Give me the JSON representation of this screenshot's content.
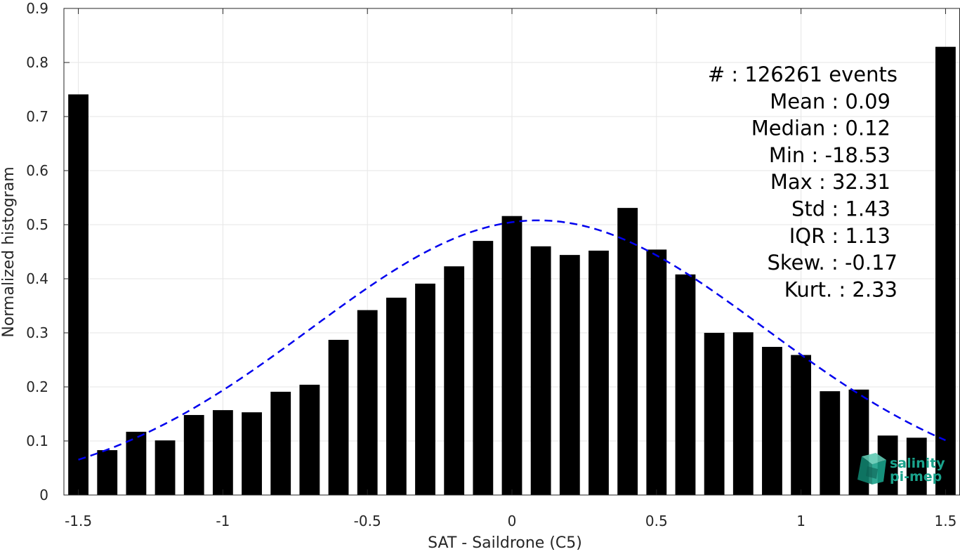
{
  "chart_data": {
    "type": "bar",
    "xlabel": "SAT - Saildrone (C5)",
    "ylabel": "Normalized histogram",
    "xlim": [
      -1.55,
      1.55
    ],
    "ylim": [
      0,
      0.9
    ],
    "xticks": [
      -1.5,
      -1,
      -0.5,
      0,
      0.5,
      1,
      1.5
    ],
    "xtick_labels": [
      "-1.5",
      "-1",
      "-0.5",
      "0",
      "0.5",
      "1",
      "1.5"
    ],
    "yticks": [
      0,
      0.1,
      0.2,
      0.3,
      0.4,
      0.5,
      0.6,
      0.7,
      0.8,
      0.9
    ],
    "ytick_labels": [
      "0",
      "0.1",
      "0.2",
      "0.3",
      "0.4",
      "0.5",
      "0.6",
      "0.7",
      "0.8",
      "0.9"
    ],
    "grid": true,
    "bar_color": "#000000",
    "bar_width": 0.07,
    "x": [
      -1.5,
      -1.4,
      -1.3,
      -1.2,
      -1.1,
      -1.0,
      -0.9,
      -0.8,
      -0.7,
      -0.6,
      -0.5,
      -0.4,
      -0.3,
      -0.2,
      -0.1,
      0.0,
      0.1,
      0.2,
      0.3,
      0.4,
      0.5,
      0.6,
      0.7,
      0.8,
      0.9,
      1.0,
      1.1,
      1.2,
      1.3,
      1.4,
      1.5
    ],
    "values": [
      0.741,
      0.083,
      0.117,
      0.101,
      0.148,
      0.157,
      0.153,
      0.191,
      0.204,
      0.287,
      0.342,
      0.365,
      0.391,
      0.423,
      0.47,
      0.516,
      0.46,
      0.444,
      0.452,
      0.531,
      0.454,
      0.408,
      0.3,
      0.301,
      0.274,
      0.259,
      0.192,
      0.195,
      0.11,
      0.106,
      0.829
    ],
    "fit_curve": {
      "style": "dashed",
      "color": "#0000ee",
      "mean": 0.09,
      "std": 0.785,
      "peak": 0.508,
      "x_range": [
        -1.5,
        1.5
      ]
    },
    "stats": {
      "lines": [
        "#  : 126261 events",
        "Mean : 0.09",
        "Median : 0.12",
        "Min : -18.53",
        "Max : 32.31",
        "Std : 1.43",
        "IQR : 1.13",
        "Skew. : -0.17",
        "Kurt. : 2.33"
      ]
    }
  },
  "logo": {
    "line1": "salinity",
    "line2": "pi-mep",
    "color": "#1aa38c"
  }
}
